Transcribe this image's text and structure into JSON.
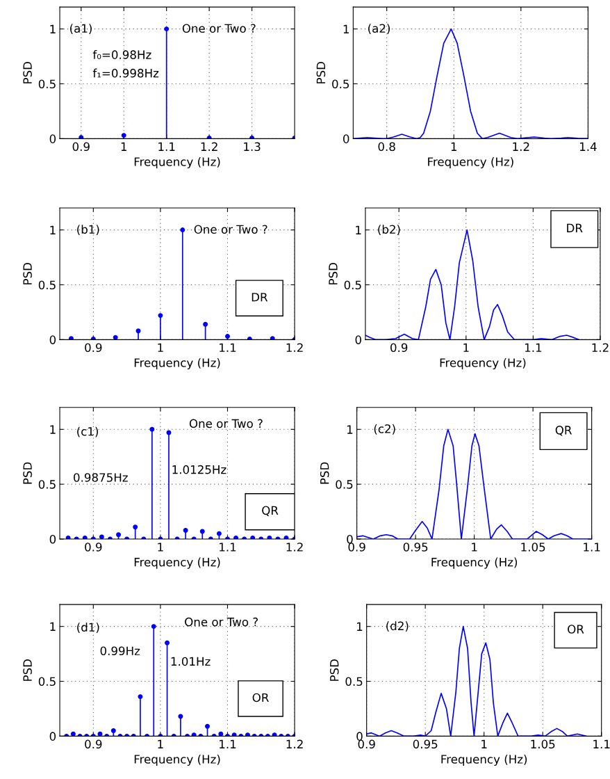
{
  "chart_data": [
    {
      "type": "lollipop",
      "xlabel": "Frequency (Hz)",
      "ylabel": "PSD",
      "xlim": [
        0.85,
        1.4
      ],
      "xticks": [
        0.9,
        1,
        1.1,
        1.2,
        1.3
      ],
      "ylim": [
        0,
        1.2
      ],
      "yticks": [
        0,
        0.5,
        1
      ],
      "grid": true,
      "marker": "circle",
      "color": "#0000ff",
      "x": [
        0.9,
        1.0,
        1.1,
        1.2,
        1.3,
        1.4
      ],
      "values": [
        0.01,
        0.03,
        1,
        0.005,
        0.005,
        0.005
      ],
      "annotations": [
        "(a1)",
        "f₀=0.98Hz",
        "f₁=0.998Hz",
        "One or Two ?"
      ]
    },
    {
      "type": "line",
      "xlabel": "Frequency (Hz)",
      "ylabel": "PSD",
      "xlim": [
        0.7,
        1.4
      ],
      "xticks": [
        0.8,
        1,
        1.2,
        1.4
      ],
      "ylim": [
        0,
        1.2
      ],
      "yticks": [
        0,
        0.5,
        1
      ],
      "grid": true,
      "color": "#0000ff",
      "x": [
        0.7,
        0.72,
        0.742,
        0.765,
        0.79,
        0.8,
        0.82,
        0.845,
        0.87,
        0.889,
        0.9,
        0.91,
        0.93,
        0.95,
        0.97,
        0.992,
        1.01,
        1.03,
        1.05,
        1.07,
        1.085,
        1.1,
        1.136,
        1.17,
        1.19,
        1.215,
        1.24,
        1.27,
        1.29,
        1.32,
        1.34,
        1.37,
        1.4
      ],
      "values": [
        0,
        0.005,
        0.01,
        0.005,
        0,
        0,
        0.015,
        0.04,
        0.015,
        0,
        0.01,
        0.05,
        0.25,
        0.57,
        0.87,
        1,
        0.87,
        0.57,
        0.25,
        0.05,
        0,
        0.01,
        0.05,
        0.01,
        0,
        0.008,
        0.015,
        0.005,
        0,
        0.005,
        0.01,
        0.003,
        0
      ],
      "annotations": [
        "(a2)"
      ]
    },
    {
      "type": "lollipop",
      "xlabel": "Frequency (Hz)",
      "ylabel": "PSD",
      "xlim": [
        0.85,
        1.2
      ],
      "xticks": [
        0.9,
        1,
        1.1,
        1.2
      ],
      "ylim": [
        0,
        1.2
      ],
      "yticks": [
        0,
        0.5,
        1
      ],
      "grid": true,
      "marker": "circle",
      "color": "#0000ff",
      "x": [
        0.867,
        0.9,
        0.933,
        0.967,
        1.0,
        1.033,
        1.067,
        1.1,
        1.133,
        1.167,
        1.2
      ],
      "values": [
        0.01,
        0.005,
        0.02,
        0.08,
        0.22,
        1,
        0.14,
        0.03,
        0.005,
        0.01,
        0
      ],
      "annotations": [
        "(b1)",
        "One or Two ?",
        "DR"
      ]
    },
    {
      "type": "line",
      "xlabel": "Frequency (Hz)",
      "ylabel": "PSD",
      "xlim": [
        0.85,
        1.2
      ],
      "xticks": [
        0.9,
        1,
        1.1,
        1.2
      ],
      "ylim": [
        0,
        1.2
      ],
      "yticks": [
        0,
        0.5,
        1
      ],
      "grid": true,
      "color": "#0000ff",
      "x": [
        0.85,
        0.857,
        0.865,
        0.88,
        0.895,
        0.908,
        0.92,
        0.929,
        0.94,
        0.947,
        0.955,
        0.963,
        0.97,
        0.976,
        0.983,
        0.99,
        1.0015,
        1.01,
        1.018,
        1.027,
        1.035,
        1.041,
        1.047,
        1.054,
        1.062,
        1.072,
        1.1,
        1.112,
        1.128,
        1.14,
        1.15,
        1.16,
        1.168
      ],
      "values": [
        0.04,
        0.02,
        0,
        0,
        0.01,
        0.05,
        0.01,
        0,
        0.3,
        0.55,
        0.64,
        0.5,
        0.15,
        0,
        0.3,
        0.7,
        1,
        0.72,
        0.3,
        0,
        0.12,
        0.27,
        0.32,
        0.22,
        0.07,
        0,
        0,
        0.01,
        0,
        0.03,
        0.04,
        0.02,
        0
      ],
      "annotations": [
        "(b2)",
        "DR"
      ]
    },
    {
      "type": "lollipop",
      "xlabel": "Frequency (Hz)",
      "ylabel": "PSD",
      "xlim": [
        0.85,
        1.2
      ],
      "xticks": [
        0.9,
        1,
        1.1,
        1.2
      ],
      "ylim": [
        0,
        1.2
      ],
      "yticks": [
        0,
        0.5,
        1
      ],
      "grid": true,
      "marker": "circle",
      "color": "#0000ff",
      "x": [
        0.8625,
        0.875,
        0.8875,
        0.9,
        0.9125,
        0.925,
        0.9375,
        0.95,
        0.9625,
        0.975,
        0.9875,
        1.0,
        1.0125,
        1.025,
        1.0375,
        1.05,
        1.0625,
        1.075,
        1.0875,
        1.1,
        1.1125,
        1.125,
        1.1375,
        1.15,
        1.1625,
        1.175,
        1.1875,
        1.2
      ],
      "values": [
        0.01,
        0,
        0.01,
        0,
        0.02,
        0,
        0.04,
        0,
        0.11,
        0,
        1,
        0,
        0.97,
        0,
        0.08,
        0,
        0.07,
        0,
        0.05,
        0,
        0.01,
        0,
        0.01,
        0,
        0.01,
        0,
        0.01,
        0
      ],
      "annotations": [
        "(c1)",
        "One or Two ?",
        "QR",
        "0.9875Hz",
        "1.0125Hz"
      ]
    },
    {
      "type": "line",
      "xlabel": "Frequency (Hz)",
      "ylabel": "PSD",
      "xlim": [
        0.9,
        1.1
      ],
      "xticks": [
        0.9,
        0.95,
        1,
        1.05,
        1.1
      ],
      "ylim": [
        0,
        1.2
      ],
      "yticks": [
        0,
        0.5,
        1
      ],
      "grid": true,
      "color": "#0000ff",
      "x": [
        0.9,
        0.905,
        0.914,
        0.92,
        0.925,
        0.93,
        0.935,
        0.945,
        0.95,
        0.9556,
        0.96,
        0.964,
        0.97,
        0.974,
        0.9776,
        0.982,
        0.985,
        0.989,
        0.994,
        0.998,
        1.0006,
        1.004,
        1.008,
        1.014,
        1.019,
        1.023,
        1.028,
        1.0325,
        1.045,
        1.0528,
        1.058,
        1.063,
        1.068,
        1.074,
        1.079,
        1.084,
        1.1
      ],
      "values": [
        0.02,
        0.03,
        0,
        0.03,
        0.04,
        0.03,
        0,
        0,
        0.08,
        0.16,
        0.1,
        0,
        0.45,
        0.85,
        1,
        0.85,
        0.5,
        0,
        0.45,
        0.85,
        0.96,
        0.85,
        0.5,
        0,
        0.09,
        0.13,
        0.07,
        0,
        0,
        0.07,
        0.04,
        0,
        0.03,
        0.05,
        0.03,
        0,
        0
      ],
      "annotations": [
        "(c2)",
        "QR"
      ]
    },
    {
      "type": "lollipop",
      "xlabel": "Frequency (Hz)",
      "ylabel": "PSD",
      "xlim": [
        0.85,
        1.2
      ],
      "xticks": [
        0.9,
        1,
        1.1,
        1.2
      ],
      "ylim": [
        0,
        1.2
      ],
      "yticks": [
        0,
        0.5,
        1
      ],
      "grid": true,
      "marker": "circle",
      "color": "#0000ff",
      "x": [
        0.86,
        0.87,
        0.88,
        0.89,
        0.9,
        0.91,
        0.92,
        0.93,
        0.94,
        0.95,
        0.96,
        0.97,
        0.98,
        0.99,
        1.0,
        1.01,
        1.02,
        1.03,
        1.04,
        1.05,
        1.06,
        1.07,
        1.08,
        1.09,
        1.1,
        1.11,
        1.12,
        1.13,
        1.14,
        1.15,
        1.16,
        1.17,
        1.18,
        1.19,
        1.2
      ],
      "values": [
        0,
        0.02,
        0,
        0,
        0,
        0.02,
        0,
        0.05,
        0,
        0,
        0,
        0.36,
        0,
        1,
        0,
        0.85,
        0,
        0.18,
        0,
        0.01,
        0,
        0.09,
        0,
        0.02,
        0,
        0.01,
        0,
        0.01,
        0,
        0,
        0,
        0.01,
        0,
        0,
        0
      ],
      "annotations": [
        "(d1)",
        "One or Two ?",
        "OR",
        "0.99Hz",
        "1.01Hz"
      ]
    },
    {
      "type": "line",
      "xlabel": "Frequency (Hz)",
      "ylabel": "PSD",
      "xlim": [
        0.9,
        1.1
      ],
      "xticks": [
        0.9,
        0.95,
        1,
        1.05,
        1.1
      ],
      "ylim": [
        0,
        1.2
      ],
      "yticks": [
        0,
        0.5,
        1
      ],
      "grid": true,
      "color": "#0000ff",
      "x": [
        0.9,
        0.904,
        0.911,
        0.916,
        0.921,
        0.926,
        0.932,
        0.94,
        0.946,
        0.95,
        0.955,
        0.959,
        0.9635,
        0.968,
        0.9716,
        0.976,
        0.979,
        0.9823,
        0.986,
        0.989,
        0.9915,
        0.995,
        0.998,
        1.0015,
        1.005,
        1.008,
        1.0117,
        1.016,
        1.0199,
        1.024,
        1.029,
        1.04,
        1.046,
        1.052,
        1.057,
        1.062,
        1.067,
        1.071,
        1.0795,
        1.087
      ],
      "values": [
        0.02,
        0.03,
        0,
        0.03,
        0.05,
        0.03,
        0,
        0,
        0.01,
        0,
        0.05,
        0.22,
        0.39,
        0.25,
        0,
        0.4,
        0.8,
        1,
        0.8,
        0.3,
        0,
        0.4,
        0.75,
        0.85,
        0.7,
        0.3,
        0,
        0.12,
        0.21,
        0.12,
        0,
        0,
        0.01,
        0,
        0.04,
        0.07,
        0.04,
        0,
        0.02,
        0
      ],
      "annotations": [
        "(d2)",
        "OR"
      ]
    }
  ]
}
